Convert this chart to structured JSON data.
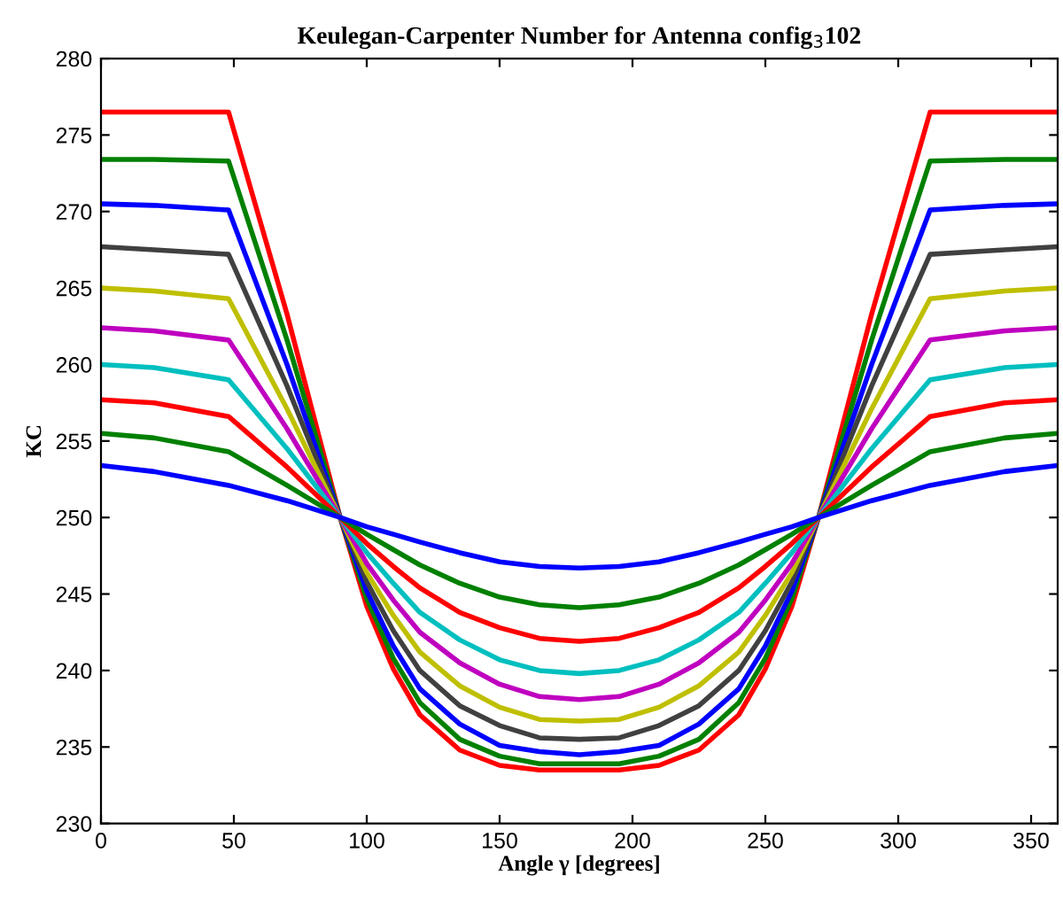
{
  "chart_data": {
    "type": "line",
    "title": "Keulegan-Carpenter Number for Antenna config$_{3}$102",
    "xlabel": "Angle γ [degrees]",
    "ylabel": "KC",
    "x": [
      0,
      20,
      48,
      70,
      90,
      100,
      110,
      120,
      135,
      150,
      165,
      180,
      195,
      210,
      225,
      240,
      250,
      260,
      270,
      290,
      312,
      340,
      360
    ],
    "series": [
      {
        "color": "#ff0000",
        "values": [
          276.5,
          276.5,
          276.5,
          263.3,
          250,
          244.2,
          240.1,
          237.1,
          234.8,
          233.8,
          233.5,
          233.5,
          233.5,
          233.8,
          234.8,
          237.1,
          240.1,
          244.2,
          250,
          263.3,
          276.5,
          276.5,
          276.5
        ]
      },
      {
        "color": "#008000",
        "values": [
          273.4,
          273.4,
          273.3,
          261.6,
          250,
          244.7,
          240.8,
          237.9,
          235.5,
          234.4,
          233.9,
          233.9,
          233.9,
          234.4,
          235.5,
          237.9,
          240.8,
          244.7,
          250,
          261.6,
          273.3,
          273.4,
          273.4
        ]
      },
      {
        "color": "#0000ff",
        "values": [
          270.5,
          270.4,
          270.1,
          260.0,
          250,
          245.2,
          241.6,
          238.8,
          236.5,
          235.1,
          234.7,
          234.5,
          234.7,
          235.1,
          236.5,
          238.8,
          241.6,
          245.2,
          250,
          260.0,
          270.1,
          270.4,
          270.5
        ]
      },
      {
        "color": "#404040",
        "values": [
          267.7,
          267.5,
          267.2,
          258.6,
          250,
          245.8,
          242.6,
          240.0,
          237.7,
          236.4,
          235.6,
          235.5,
          235.6,
          236.4,
          237.7,
          240.0,
          242.6,
          245.8,
          250,
          258.6,
          267.2,
          267.5,
          267.7
        ]
      },
      {
        "color": "#bfbf00",
        "values": [
          265.0,
          264.8,
          264.3,
          257.1,
          250,
          246.4,
          243.6,
          241.2,
          239.0,
          237.6,
          236.8,
          236.7,
          236.8,
          237.6,
          239.0,
          241.2,
          243.6,
          246.4,
          250,
          257.1,
          264.3,
          264.8,
          265.0
        ]
      },
      {
        "color": "#bf00bf",
        "values": [
          262.4,
          262.2,
          261.6,
          255.8,
          250,
          247.0,
          244.6,
          242.5,
          240.5,
          239.1,
          238.3,
          238.1,
          238.3,
          239.1,
          240.5,
          242.5,
          244.6,
          247.0,
          250,
          255.8,
          261.6,
          262.2,
          262.4
        ]
      },
      {
        "color": "#00bfbf",
        "values": [
          260.0,
          259.8,
          259.0,
          254.5,
          250,
          247.7,
          245.7,
          243.8,
          242.0,
          240.7,
          240.0,
          239.8,
          240.0,
          240.7,
          242.0,
          243.8,
          245.7,
          247.7,
          250,
          254.5,
          259.0,
          259.8,
          260.0
        ]
      },
      {
        "color": "#ff0000",
        "values": [
          257.7,
          257.5,
          256.6,
          253.3,
          250,
          248.3,
          246.8,
          245.4,
          243.8,
          242.8,
          242.1,
          241.9,
          242.1,
          242.8,
          243.8,
          245.4,
          246.8,
          248.3,
          250,
          253.3,
          256.6,
          257.5,
          257.7
        ]
      },
      {
        "color": "#008000",
        "values": [
          255.5,
          255.2,
          254.3,
          252.1,
          250,
          248.9,
          247.9,
          246.9,
          245.7,
          244.8,
          244.3,
          244.1,
          244.3,
          244.8,
          245.7,
          246.9,
          247.9,
          248.9,
          250,
          252.1,
          254.3,
          255.2,
          255.5
        ]
      },
      {
        "color": "#0000ff",
        "values": [
          253.4,
          253.0,
          252.1,
          251.1,
          250,
          249.4,
          248.9,
          248.4,
          247.7,
          247.1,
          246.8,
          246.7,
          246.8,
          247.1,
          247.7,
          248.4,
          248.9,
          249.4,
          250,
          251.1,
          252.1,
          253.0,
          253.4
        ]
      }
    ],
    "xlim": [
      0,
      360
    ],
    "xticks": [
      0,
      50,
      100,
      150,
      200,
      250,
      300,
      350
    ],
    "ylim": [
      230,
      280
    ],
    "yticks": [
      230,
      235,
      240,
      245,
      250,
      255,
      260,
      265,
      270,
      275,
      280
    ],
    "grid": false,
    "marker": "none",
    "line_style": "solid"
  }
}
